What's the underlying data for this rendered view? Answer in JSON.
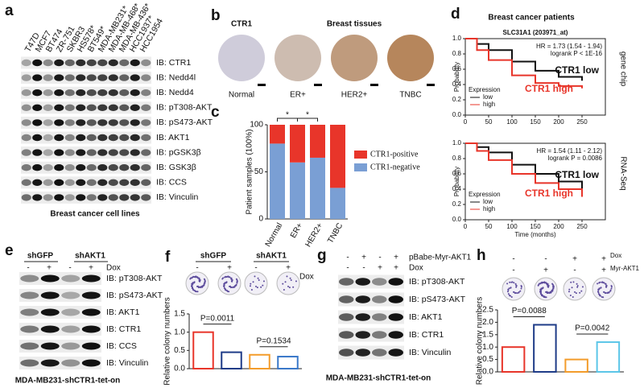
{
  "panels": {
    "a": {
      "label": "a",
      "cell_lines": [
        "T47D",
        "MCF7",
        "BT474",
        "ZR-751",
        "SKBR3",
        "HS578*",
        "BT549*",
        "MDA-MB231*",
        "MDA-MB-468*",
        "MDA-MB-436*",
        "HCC1937*",
        "HCC1954"
      ],
      "blots": [
        "IB: CTR1",
        "IB: Nedd4l",
        "IB: Nedd4",
        "IB: pT308-AKT",
        "IB: pS473-AKT",
        "IB: AKT1",
        "IB: pGSK3β",
        "IB: GSK3β",
        "IB: CCS",
        "IB: Vinculin"
      ],
      "caption": "Breast cancer cell lines"
    },
    "b": {
      "label": "b",
      "title": "CTR1",
      "subtitle": "Breast tissues",
      "tissues": [
        "Normal",
        "ER+",
        "HER2+",
        "TNBC"
      ]
    },
    "c": {
      "label": "c"
    },
    "d": {
      "label": "d",
      "title": "Breast cancer patients"
    },
    "e": {
      "label": "e",
      "groups": [
        "shGFP",
        "shAKT1"
      ],
      "dox_label": "Dox",
      "dox": [
        "-",
        "+",
        "-",
        "+"
      ],
      "blots": [
        "IB: pT308-AKT",
        "IB: pS473-AKT",
        "IB: AKT1",
        "IB: CTR1",
        "IB: CCS",
        "IB: Vinculin"
      ],
      "caption": "MDA-MB231-shCTR1-tet-on"
    },
    "f": {
      "label": "f",
      "groups": [
        "shGFP",
        "shAKT1"
      ],
      "dox_label": "Dox",
      "dox": [
        "-",
        "+",
        "-",
        "+"
      ]
    },
    "g": {
      "label": "g",
      "rows": [
        "pBabe-Myr-AKT1",
        "Dox"
      ],
      "myr": [
        "-",
        "+",
        "-",
        "+"
      ],
      "dox": [
        "-",
        "-",
        "+",
        "+"
      ],
      "blots": [
        "IB: pT308-AKT",
        "IB: pS473-AKT",
        "IB: AKT1",
        "IB: CTR1",
        "IB: Vinculin"
      ],
      "caption": "MDA-MB231-shCTR1-tet-on"
    },
    "h": {
      "label": "h",
      "rows": [
        "Dox",
        "Myr-AKT1"
      ],
      "dox": [
        "-",
        "-",
        "+",
        "+"
      ],
      "myr": [
        "-",
        "+",
        "-",
        "+"
      ]
    }
  },
  "chart_data": [
    {
      "type": "stacked_bar",
      "categories": [
        "Normal",
        "ER+",
        "HER2+",
        "TNBC"
      ],
      "ylabel": "Patient samples (100%)",
      "series": [
        {
          "name": "CTR1-negative",
          "color": "#7a9fd4",
          "values": [
            80,
            60,
            65,
            33
          ]
        },
        {
          "name": "CTR1-positive",
          "color": "#e8352a",
          "values": [
            20,
            40,
            35,
            67
          ]
        }
      ],
      "ylim": [
        0,
        100
      ],
      "yticks": [
        0,
        50,
        100
      ],
      "annotations": [
        "*",
        "*"
      ]
    },
    {
      "type": "line",
      "title": "SLC31A1 (203971_at)",
      "annotations": [
        "HR = 1.73 (1.54 - 1.94)",
        "logrank P < 1E-16",
        "CTR1 low",
        "CTR1 high"
      ],
      "side_label": "gene chip",
      "ylabel": "Probability",
      "legend_title": "Expression",
      "x": [
        0,
        25,
        50,
        100,
        150,
        200,
        250
      ],
      "series": [
        {
          "name": "low",
          "color": "#111111",
          "values": [
            1,
            0.93,
            0.85,
            0.7,
            0.58,
            0.5,
            0.45
          ]
        },
        {
          "name": "high",
          "color": "#e8352a",
          "values": [
            1,
            0.85,
            0.72,
            0.52,
            0.42,
            0.38,
            0.35
          ]
        }
      ],
      "xlim": [
        0,
        300
      ],
      "xticks": [
        0,
        50,
        100,
        150,
        200,
        250
      ],
      "ylim": [
        0,
        1
      ],
      "yticks": [
        {
          "value": 0,
          "label": "0.0"
        },
        {
          "value": 0.2,
          "label": "0.2"
        },
        {
          "value": 0.4,
          "label": "0.4"
        },
        {
          "value": 0.6,
          "label": "0.6"
        },
        {
          "value": 0.8,
          "label": "0.8"
        },
        {
          "value": 1,
          "label": "1.0"
        }
      ]
    },
    {
      "type": "line",
      "annotations": [
        "HR = 1.54 (1.11 - 2.12)",
        "logrank P = 0.0086",
        "CTR1 low",
        "CTR1 high"
      ],
      "side_label": "RNA-Seq",
      "ylabel": "Probability",
      "xlabel": "Time (months)",
      "legend_title": "Expression",
      "x": [
        0,
        25,
        50,
        100,
        150,
        200,
        250
      ],
      "series": [
        {
          "name": "low",
          "color": "#111111",
          "values": [
            1,
            0.95,
            0.88,
            0.72,
            0.6,
            0.5,
            0.4
          ]
        },
        {
          "name": "high",
          "color": "#e8352a",
          "values": [
            1,
            0.9,
            0.78,
            0.6,
            0.48,
            0.4,
            0.3
          ]
        }
      ],
      "xlim": [
        0,
        300
      ],
      "xticks": [
        0,
        50,
        100,
        150,
        200,
        250
      ],
      "ylim": [
        0,
        1
      ],
      "yticks": [
        {
          "value": 0,
          "label": "0.0"
        },
        {
          "value": 0.2,
          "label": "0.2"
        },
        {
          "value": 0.4,
          "label": "0.4"
        },
        {
          "value": 0.6,
          "label": "0.6"
        },
        {
          "value": 0.8,
          "label": "0.8"
        },
        {
          "value": 1,
          "label": "1.0"
        }
      ]
    },
    {
      "type": "bar",
      "ylabel": "Relative colony numbers",
      "values": [
        1.0,
        0.45,
        0.38,
        0.33
      ],
      "colors": [
        "#e8352a",
        "#1f3c88",
        "#f39c2b",
        "#3a78c9"
      ],
      "ylim": [
        0,
        1.5
      ],
      "yticks": [
        {
          "value": 0,
          "label": "0.0"
        },
        {
          "value": 0.5,
          "label": "0.5"
        },
        {
          "value": 1,
          "label": "1.0"
        },
        {
          "value": 1.5,
          "label": "1.5"
        }
      ],
      "annotations": [
        "P=0.0011",
        "P=0.1534"
      ]
    },
    {
      "type": "bar",
      "ylabel": "Relative colony numbers",
      "values": [
        1.0,
        1.9,
        0.5,
        1.2
      ],
      "colors": [
        "#e8352a",
        "#1f3c88",
        "#f39c2b",
        "#5cc6e8"
      ],
      "ylim": [
        0,
        2.5
      ],
      "yticks": [
        {
          "value": 0,
          "label": "0.0"
        },
        {
          "value": 0.5,
          "label": "0.5"
        },
        {
          "value": 1,
          "label": "1.0"
        },
        {
          "value": 1.5,
          "label": "1.5"
        },
        {
          "value": 2,
          "label": "2.0"
        },
        {
          "value": 2.5,
          "label": "2.5"
        }
      ],
      "annotations": [
        "P=0.0088",
        "P=0.0042"
      ]
    }
  ]
}
